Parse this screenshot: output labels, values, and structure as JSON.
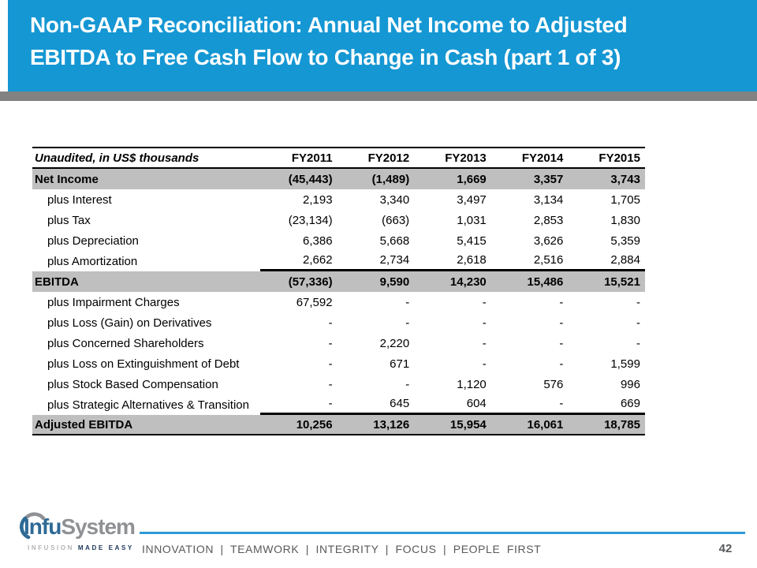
{
  "slide": {
    "title_lines": [
      "Non-GAAP Reconciliation: Annual Net Income to Adjusted",
      "EBITDA to Free Cash Flow to Change in Cash (part 1 of 3)"
    ]
  },
  "table": {
    "header": {
      "label": "Unaudited, in US$ thousands",
      "columns": [
        "FY2011",
        "FY2012",
        "FY2013",
        "FY2014",
        "FY2015"
      ]
    },
    "rows": [
      {
        "label": "Net Income",
        "values": [
          "(45,443)",
          "(1,489)",
          "1,669",
          "3,357",
          "3,743"
        ],
        "style": "total"
      },
      {
        "label": "plus Interest",
        "values": [
          "2,193",
          "3,340",
          "3,497",
          "3,134",
          "1,705"
        ],
        "style": "plus"
      },
      {
        "label": "plus Tax",
        "values": [
          "(23,134)",
          "(663)",
          "1,031",
          "2,853",
          "1,830"
        ],
        "style": "plus"
      },
      {
        "label": "plus Depreciation",
        "values": [
          "6,386",
          "5,668",
          "5,415",
          "3,626",
          "5,359"
        ],
        "style": "plus"
      },
      {
        "label": "plus Amortization",
        "values": [
          "2,662",
          "2,734",
          "2,618",
          "2,516",
          "2,884"
        ],
        "style": "plus sum-below"
      },
      {
        "label": "EBITDA",
        "values": [
          "(57,336)",
          "9,590",
          "14,230",
          "15,486",
          "15,521"
        ],
        "style": "total"
      },
      {
        "label": "plus Impairment Charges",
        "values": [
          "67,592",
          "-",
          "-",
          "-",
          "-"
        ],
        "style": "plus"
      },
      {
        "label": "plus Loss (Gain) on Derivatives",
        "values": [
          "-",
          "-",
          "-",
          "-",
          "-"
        ],
        "style": "plus"
      },
      {
        "label": "plus Concerned Shareholders",
        "values": [
          "-",
          "2,220",
          "-",
          "-",
          "-"
        ],
        "style": "plus"
      },
      {
        "label": "plus Loss on Extinguishment of Debt",
        "values": [
          "-",
          "671",
          "-",
          "-",
          "1,599"
        ],
        "style": "plus"
      },
      {
        "label": "plus Stock Based Compensation",
        "values": [
          "-",
          "-",
          "1,120",
          "576",
          "996"
        ],
        "style": "plus"
      },
      {
        "label": "plus Strategic Alternatives & Transition",
        "values": [
          "-",
          "645",
          "604",
          "-",
          "669"
        ],
        "style": "plus sum-below"
      },
      {
        "label": "Adjusted EBITDA",
        "values": [
          "10,256",
          "13,126",
          "15,954",
          "16,061",
          "18,785"
        ],
        "style": "total bottom-line"
      }
    ]
  },
  "footer": {
    "logo": {
      "brand_primary": "Infu",
      "brand_secondary": "System",
      "tagline_light": "INFUSION ",
      "tagline_dark": "MADE EASY"
    },
    "motto_items": [
      "INNOVATION",
      "TEAMWORK",
      "INTEGRITY",
      "FOCUS",
      "PEOPLE FIRST"
    ],
    "page_number": "42"
  },
  "colors": {
    "title_background": "#1597d3",
    "title_text": "#ffffff",
    "shadow_bar": "#828282",
    "row_highlight": "#bfbfbf",
    "table_text": "#000000",
    "footer_line": "#2e9ad5",
    "footer_text": "#595959",
    "logo_blue": "#2f6a96",
    "logo_gray": "#8f9194",
    "tagline_dark": "#21395c"
  }
}
